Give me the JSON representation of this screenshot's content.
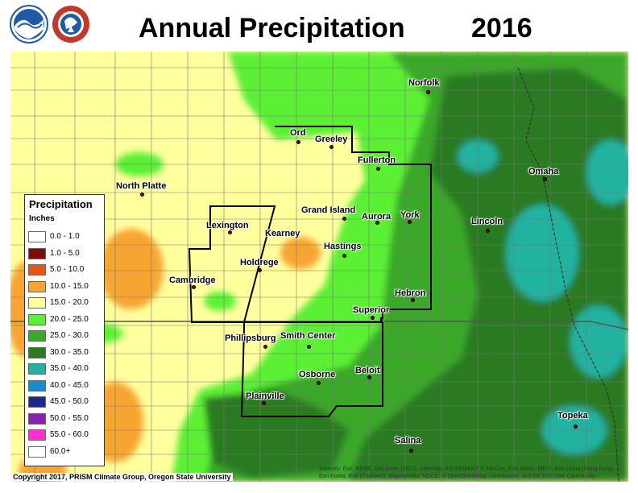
{
  "title": "Annual Precipitation",
  "year": "2016",
  "logos": [
    {
      "name": "noaa",
      "text": "NOAA",
      "color": "#1e5aa8"
    },
    {
      "name": "nws",
      "text": "NATIONAL WEATHER SERVICE",
      "color": "#c0392b"
    }
  ],
  "legend": {
    "title": "Precipitation",
    "units": "Inches",
    "items": [
      {
        "label": "0.0 - 1.0",
        "color": "#ffffff"
      },
      {
        "label": "1.0 - 5.0",
        "color": "#7a0c0c"
      },
      {
        "label": "5.0 - 10.0",
        "color": "#e3561a"
      },
      {
        "label": "10.0 - 15.0",
        "color": "#f7a530"
      },
      {
        "label": "15.0 - 20.0",
        "color": "#ffff9e"
      },
      {
        "label": "20.0 - 25.0",
        "color": "#5cf034"
      },
      {
        "label": "25.0 - 30.0",
        "color": "#3aa82a"
      },
      {
        "label": "30.0 - 35.0",
        "color": "#2a7a22"
      },
      {
        "label": "35.0 - 40.0",
        "color": "#20b2a0"
      },
      {
        "label": "40.0 - 45.0",
        "color": "#1a8ac8"
      },
      {
        "label": "45.0 - 50.0",
        "color": "#1a2a8a"
      },
      {
        "label": "50.0 - 55.0",
        "color": "#8a20b0"
      },
      {
        "label": "55.0 - 60.0",
        "color": "#ff30d0"
      },
      {
        "label": "60.0+",
        "color": "#ffffff"
      }
    ]
  },
  "cities": [
    "Norfolk",
    "Ord",
    "Greeley",
    "Fullerton",
    "North Platte",
    "Omaha",
    "Grand Island",
    "Aurora",
    "York",
    "Lincoln",
    "Lexington",
    "Kearney",
    "Hastings",
    "Holdrege",
    "Cambridge",
    "Hebron",
    "Superior",
    "Phillipsburg",
    "Smith Center",
    "Beloit",
    "Osborne",
    "Plainville",
    "Topeka",
    "Salina"
  ],
  "copyright": "Copyright 2017, PRISM Climate Group, Oregon State University",
  "attribution": "Sources: Esri, HERE, DeLorme, USGS, Intermap, INCREMENT P, NRCan, Esri Japan, METI, Esri China (Hong Kong), Esri Korea, Esri (Thailand), MapmyIndia, NGCC, © OpenStreetMap contributors, and the GIS User Community"
}
